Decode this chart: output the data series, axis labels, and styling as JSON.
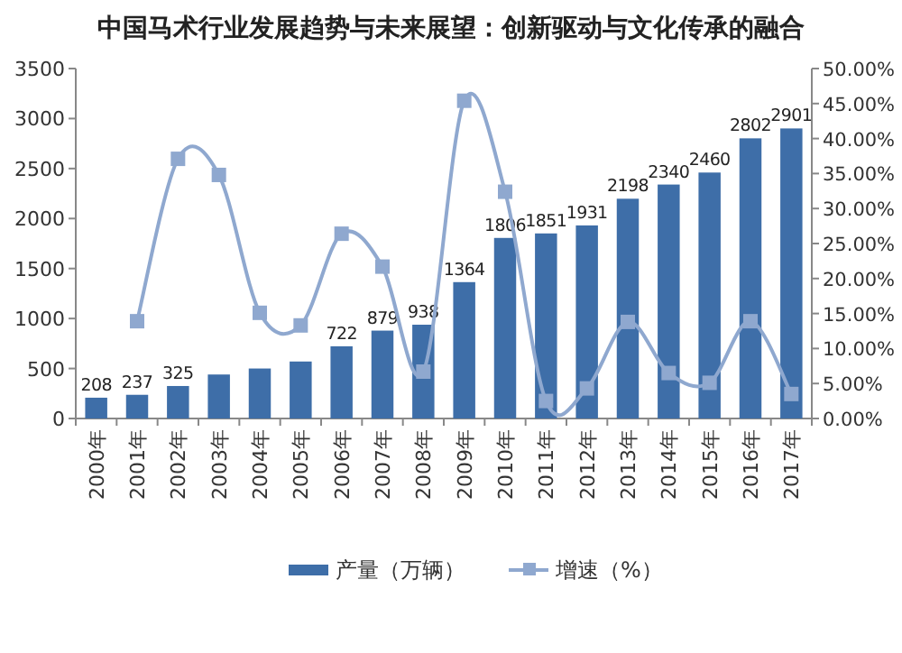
{
  "chart_data": {
    "type": "bar",
    "title": "中国马术行业发展趋势与未来展望：创新驱动与文化传承的融合",
    "categories": [
      "2000年",
      "2001年",
      "2002年",
      "2003年",
      "2004年",
      "2005年",
      "2006年",
      "2007年",
      "2008年",
      "2009年",
      "2010年",
      "2011年",
      "2012年",
      "2013年",
      "2014年",
      "2015年",
      "2016年",
      "2017年"
    ],
    "series": [
      {
        "name": "产量（万辆）",
        "color": "#3e6ea8",
        "values": [
          208,
          237,
          325,
          440,
          500,
          570,
          722,
          879,
          938,
          1364,
          1806,
          1851,
          1931,
          2198,
          2340,
          2460,
          2802,
          2901
        ],
        "value_labels": [
          "208",
          "237",
          "325",
          null,
          null,
          null,
          "722",
          "879",
          "938",
          "1364",
          "1806",
          "1851",
          "1931",
          "2198",
          "2340",
          "2460",
          "2802",
          "2901"
        ]
      },
      {
        "name": "增速（%）",
        "type": "line",
        "axis": "y2",
        "color": "#8fa8cf",
        "marker": "square",
        "values": [
          null,
          13.9,
          37.1,
          34.8,
          15.1,
          13.3,
          26.4,
          21.7,
          6.7,
          45.4,
          32.4,
          2.5,
          4.3,
          13.8,
          6.5,
          5.1,
          13.9,
          3.5
        ]
      }
    ],
    "ylim": [
      0,
      3500
    ],
    "yticks": [
      0,
      500,
      1000,
      1500,
      2000,
      2500,
      3000,
      3500
    ],
    "y2lim": [
      0,
      50
    ],
    "y2ticks": [
      {
        "value": 0,
        "label": "0.00%"
      },
      {
        "value": 5,
        "label": "5.00%"
      },
      {
        "value": 10,
        "label": "10.00%"
      },
      {
        "value": 15,
        "label": "15.00%"
      },
      {
        "value": 20,
        "label": "20.00%"
      },
      {
        "value": 25,
        "label": "25.00%"
      },
      {
        "value": 30,
        "label": "30.00%"
      },
      {
        "value": 35,
        "label": "35.00%"
      },
      {
        "value": 40,
        "label": "40.00%"
      },
      {
        "value": 45,
        "label": "45.00%"
      },
      {
        "value": 50,
        "label": "50.00%"
      }
    ],
    "legend": "bottom",
    "grid": false
  }
}
